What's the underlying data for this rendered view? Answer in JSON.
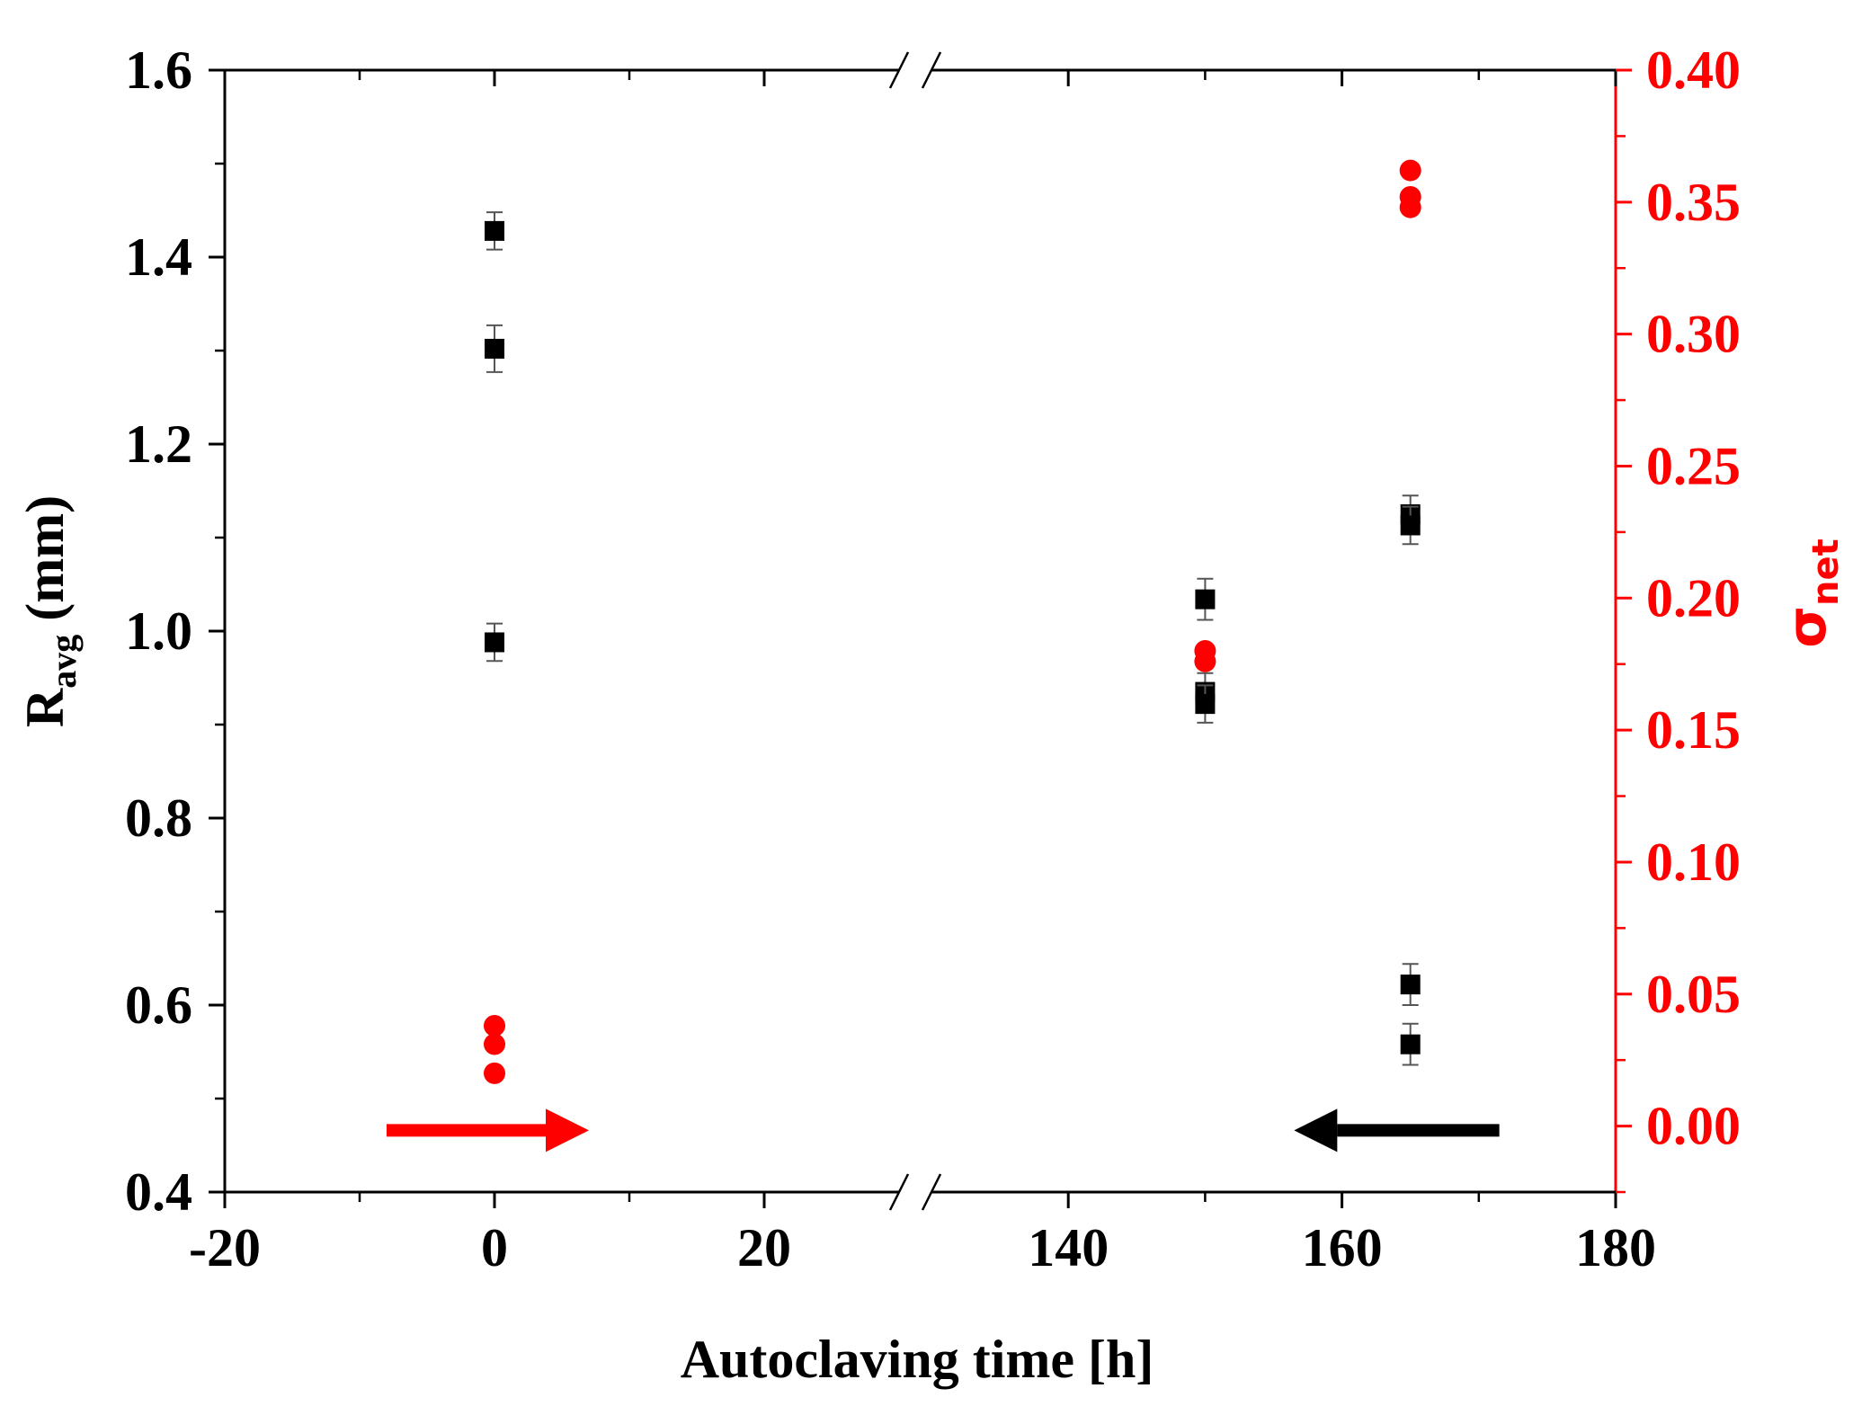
{
  "colors": {
    "black": "#000000",
    "red": "#ff0000",
    "error_bar": "#555555"
  },
  "chart_data": {
    "type": "scatter",
    "title": "",
    "xlabel": "Autoclaving time [h]",
    "ylabel": {
      "main": "R",
      "sub": "avg",
      "unit": " (mm)"
    },
    "y2label": {
      "main": "σ",
      "sub": "net"
    },
    "x_segments": [
      {
        "range": [
          -20,
          30
        ],
        "major_ticks": [
          -20,
          0,
          20
        ],
        "minor_ticks": [
          -10,
          10
        ]
      },
      {
        "range": [
          130,
          180
        ],
        "major_ticks": [
          140,
          160,
          180
        ],
        "minor_ticks": [
          150,
          170
        ]
      }
    ],
    "x_tick_labels": [
      "-20",
      "0",
      "20",
      "140",
      "160",
      "180"
    ],
    "axis_break_symbol": "//",
    "ylim": [
      0.4,
      1.6
    ],
    "y_ticks": [
      0.4,
      0.6,
      0.8,
      1.0,
      1.2,
      1.4,
      1.6
    ],
    "y_tick_labels": [
      "0.4",
      "0.6",
      "0.8",
      "1.0",
      "1.2",
      "1.4",
      "1.6"
    ],
    "y2lim": [
      -0.025,
      0.4
    ],
    "y2_ticks": [
      0.0,
      0.05,
      0.1,
      0.15,
      0.2,
      0.25,
      0.3,
      0.35,
      0.4
    ],
    "y2_tick_labels": [
      "0.00",
      "0.05",
      "0.10",
      "0.15",
      "0.20",
      "0.25",
      "0.30",
      "0.35",
      "0.40"
    ],
    "series": [
      {
        "name": "R_avg",
        "axis": "left",
        "marker": "square",
        "color": "#000000",
        "points": [
          {
            "x": 0,
            "y": 1.428,
            "err": 0.02
          },
          {
            "x": 0,
            "y": 1.302,
            "err": 0.025
          },
          {
            "x": 0,
            "y": 0.988,
            "err": 0.02
          },
          {
            "x": 150,
            "y": 1.034,
            "err": 0.022
          },
          {
            "x": 150,
            "y": 0.935,
            "err": 0.02
          },
          {
            "x": 150,
            "y": 0.922,
            "err": 0.02
          },
          {
            "x": 165,
            "y": 1.125,
            "err": 0.02
          },
          {
            "x": 165,
            "y": 1.113,
            "err": 0.02
          },
          {
            "x": 165,
            "y": 0.622,
            "err": 0.022
          },
          {
            "x": 165,
            "y": 0.558,
            "err": 0.022
          }
        ]
      },
      {
        "name": "σ_net",
        "axis": "right",
        "marker": "circle",
        "color": "#ff0000",
        "points": [
          {
            "x": 0,
            "y": 0.038
          },
          {
            "x": 0,
            "y": 0.031
          },
          {
            "x": 0,
            "y": 0.02
          },
          {
            "x": 150,
            "y": 0.18
          },
          {
            "x": 150,
            "y": 0.176
          },
          {
            "x": 165,
            "y": 0.362
          },
          {
            "x": 165,
            "y": 0.352
          },
          {
            "x": 165,
            "y": 0.348
          }
        ]
      }
    ],
    "annotations": [
      {
        "type": "arrow",
        "direction": "right",
        "color": "#ff0000",
        "x_from": -8,
        "x_to": 7,
        "y": 0.466,
        "meaning": "σ_net series uses right axis"
      },
      {
        "type": "arrow",
        "direction": "left",
        "color": "#000000",
        "x_from": 171.5,
        "x_to": 156.5,
        "y": 0.466,
        "meaning": "R_avg series uses left axis"
      }
    ]
  }
}
